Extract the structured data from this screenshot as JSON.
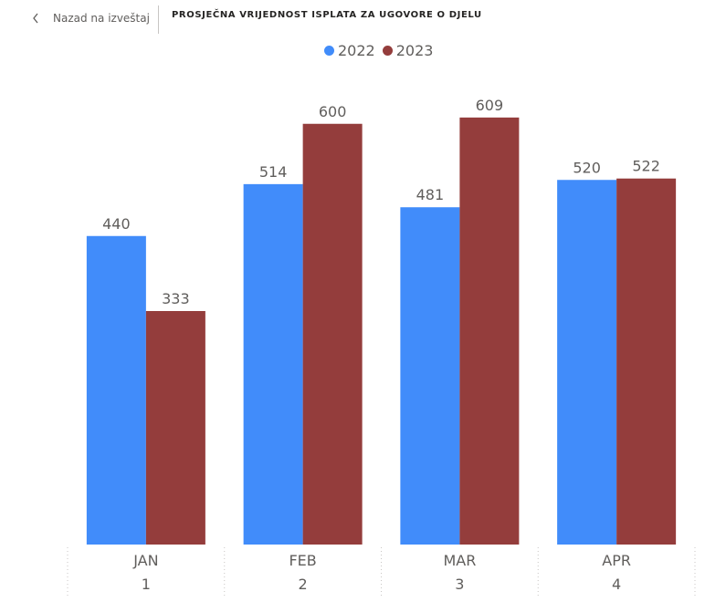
{
  "nav": {
    "back_label": "Nazad na izveštaj"
  },
  "report": {
    "title": "PROSJEČNA VRIJEDNOST ISPLATA ZA UGOVORE O DJELU"
  },
  "colors": {
    "series_2022": "#418cfa",
    "series_2023": "#943d3c"
  },
  "chart_data": {
    "type": "bar",
    "title": "",
    "categories": [
      "JAN",
      "FEB",
      "MAR",
      "APR"
    ],
    "category_numbers": [
      "1",
      "2",
      "3",
      "4"
    ],
    "series": [
      {
        "name": "2022",
        "values": [
          440,
          514,
          481,
          520
        ]
      },
      {
        "name": "2023",
        "values": [
          333,
          600,
          609,
          522
        ]
      }
    ],
    "ylim": [
      0,
      640
    ],
    "legend_position": "top-center",
    "grid": false
  }
}
